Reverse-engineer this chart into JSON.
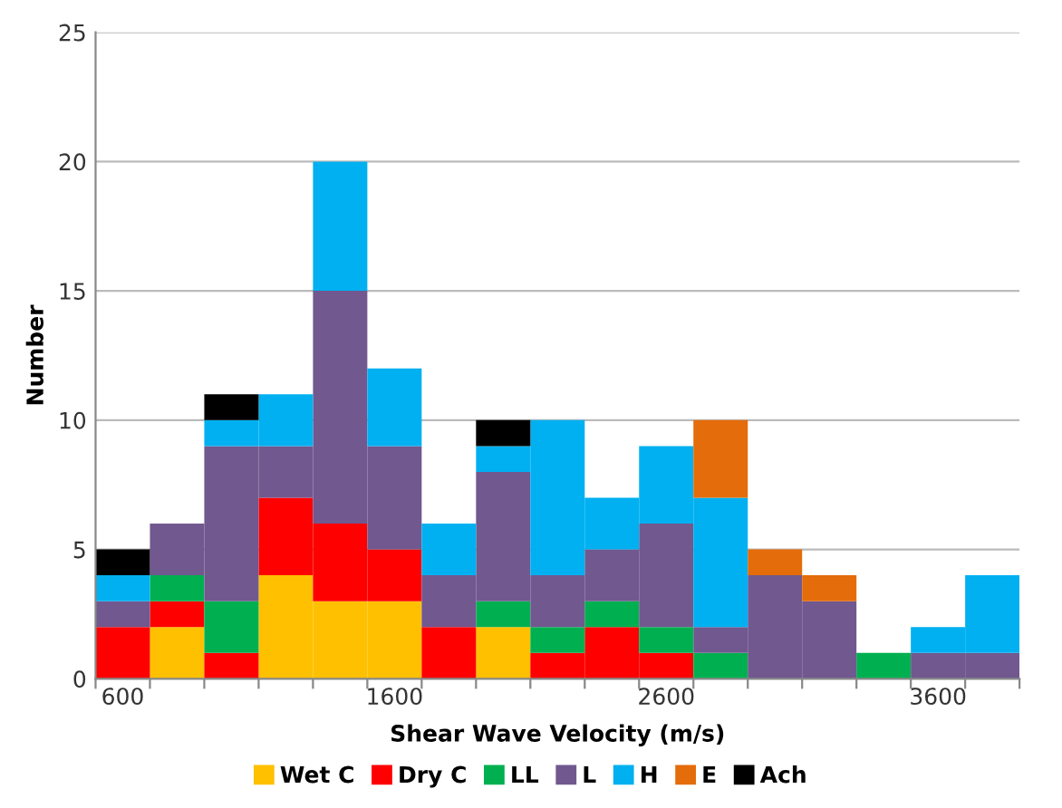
{
  "chart_data": {
    "type": "bar",
    "stacked": true,
    "xlabel": "Shear Wave Velocity (m/s)",
    "ylabel": "Number",
    "categories": [
      "600",
      null,
      null,
      null,
      null,
      "1600",
      null,
      null,
      null,
      null,
      "2600",
      null,
      null,
      null,
      null,
      "3600",
      null
    ],
    "series": [
      {
        "name": "Wet C",
        "color": "#ffc000",
        "values": [
          0,
          2,
          0,
          4,
          3,
          3,
          0,
          2,
          0,
          0,
          0,
          0,
          0,
          0,
          0,
          0,
          0
        ]
      },
      {
        "name": "Dry C",
        "color": "#ff0000",
        "values": [
          2,
          1,
          1,
          3,
          3,
          2,
          2,
          0,
          1,
          2,
          1,
          0,
          0,
          0,
          0,
          0,
          0
        ]
      },
      {
        "name": "LL",
        "color": "#00b050",
        "values": [
          0,
          1,
          2,
          0,
          0,
          0,
          0,
          1,
          1,
          1,
          1,
          1,
          0,
          0,
          1,
          0,
          0
        ]
      },
      {
        "name": "L",
        "color": "#71588f",
        "values": [
          1,
          2,
          6,
          2,
          9,
          4,
          2,
          5,
          2,
          2,
          4,
          1,
          4,
          3,
          0,
          1,
          1
        ]
      },
      {
        "name": "H",
        "color": "#00b0f0",
        "values": [
          1,
          0,
          1,
          2,
          5,
          3,
          2,
          1,
          6,
          2,
          3,
          5,
          0,
          0,
          0,
          1,
          3
        ]
      },
      {
        "name": "E",
        "color": "#e46c0a",
        "values": [
          0,
          0,
          0,
          0,
          0,
          0,
          0,
          0,
          0,
          0,
          0,
          3,
          1,
          1,
          0,
          0,
          0
        ]
      },
      {
        "name": "Ach",
        "color": "#000000",
        "values": [
          1,
          0,
          1,
          0,
          0,
          0,
          0,
          1,
          0,
          0,
          0,
          0,
          0,
          0,
          0,
          0,
          0
        ]
      }
    ],
    "ylim": [
      0,
      25
    ],
    "yticks": [
      0,
      5,
      10,
      15,
      20,
      25
    ],
    "grid": "y",
    "legend": "bottom"
  }
}
